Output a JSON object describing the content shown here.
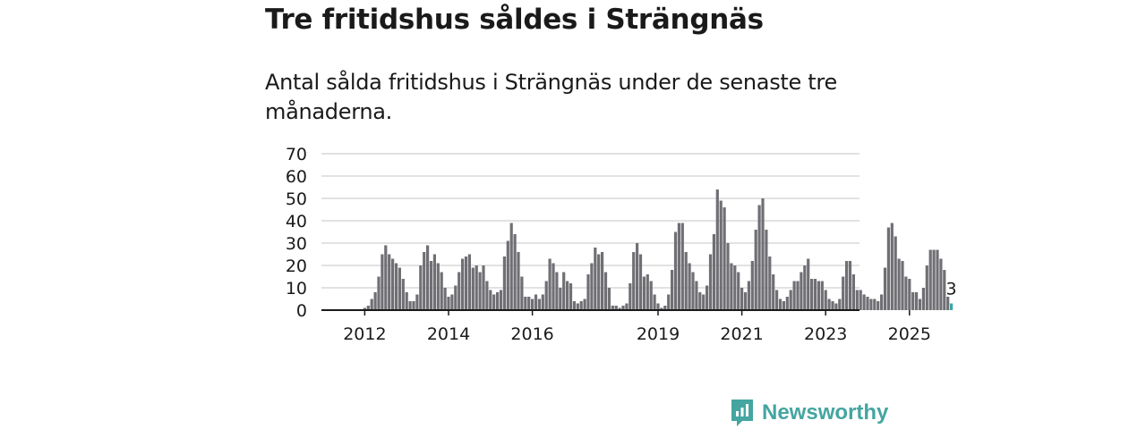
{
  "title": "Tre fritidshus såldes i Strängnäs",
  "subtitle": "Antal sålda fritidshus i Strängnäs under de senaste tre månaderna.",
  "brand": {
    "name": "Newsworthy",
    "color": "#45a5a0"
  },
  "colors": {
    "bar": "#6f6f74",
    "highlight": "#3aa7a3",
    "grid": "#d9d9d9",
    "axis": "#1a1a1a"
  },
  "chart_data": {
    "type": "bar",
    "title": "Tre fritidshus såldes i Strängnäs",
    "ylim": [
      0,
      70
    ],
    "yticks": [
      0,
      10,
      20,
      30,
      40,
      50,
      60,
      70
    ],
    "x_start": "2011-01",
    "xticks": [
      {
        "label": "2012",
        "index": 12
      },
      {
        "label": "2014",
        "index": 36
      },
      {
        "label": "2016",
        "index": 60
      },
      {
        "label": "2019",
        "index": 96
      },
      {
        "label": "2021",
        "index": 120
      },
      {
        "label": "2023",
        "index": 144
      },
      {
        "label": "2025",
        "index": 168
      }
    ],
    "grid": true,
    "highlight_last": true,
    "last_label": "3",
    "values": [
      0,
      0,
      0,
      0,
      0,
      0,
      0,
      0,
      0,
      0,
      0,
      0,
      1,
      2,
      5,
      8,
      15,
      25,
      29,
      25,
      23,
      21,
      19,
      14,
      8,
      4,
      4,
      7,
      20,
      26,
      29,
      22,
      25,
      21,
      17,
      10,
      6,
      7,
      11,
      17,
      23,
      24,
      25,
      19,
      20,
      17,
      20,
      13,
      9,
      7,
      8,
      9,
      24,
      31,
      39,
      34,
      26,
      15,
      6,
      6,
      5,
      7,
      5,
      7,
      13,
      23,
      21,
      17,
      10,
      17,
      13,
      12,
      4,
      3,
      4,
      5,
      16,
      21,
      28,
      25,
      26,
      17,
      10,
      2,
      2,
      1,
      2,
      3,
      12,
      26,
      30,
      25,
      15,
      16,
      13,
      7,
      3,
      1,
      2,
      7,
      18,
      35,
      39,
      39,
      26,
      21,
      17,
      13,
      8,
      7,
      11,
      25,
      34,
      54,
      49,
      46,
      30,
      21,
      20,
      17,
      10,
      8,
      13,
      22,
      36,
      47,
      50,
      36,
      24,
      16,
      9,
      5,
      4,
      6,
      9,
      13,
      13,
      17,
      20,
      23,
      14,
      14,
      13,
      13,
      9,
      5,
      4,
      3,
      5,
      15,
      22,
      22,
      16,
      9,
      9,
      7,
      6,
      5,
      5,
      4,
      7,
      19,
      37,
      39,
      33,
      23,
      22,
      15,
      14,
      8,
      8,
      5,
      10,
      20,
      27,
      27,
      27,
      23,
      18,
      6,
      3
    ]
  }
}
